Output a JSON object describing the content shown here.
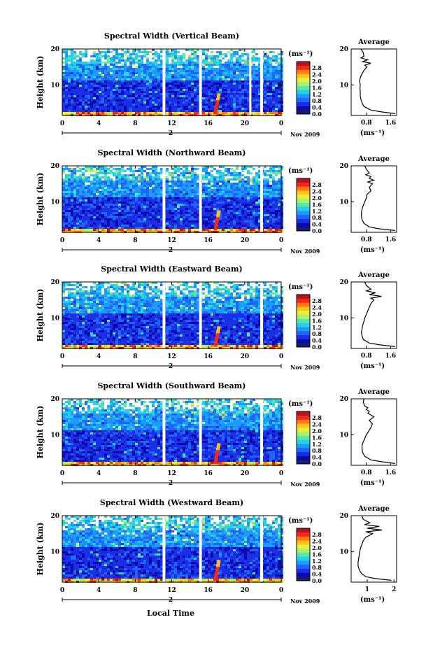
{
  "figure": {
    "xaxis_label": "Local Time",
    "date_label": "Nov 2009",
    "day_marker": "2"
  },
  "colorbar": {
    "unit_label": "(ms⁻¹)",
    "tick_labels": [
      "0.0",
      "0.4",
      "0.8",
      "1.2",
      "1.6",
      "2.0",
      "2.4",
      "2.8"
    ],
    "colors": [
      "#1a1a6e",
      "#0a0ab0",
      "#1a2fe6",
      "#1f66ff",
      "#1e9bff",
      "#25d1e6",
      "#5ce6a8",
      "#a8f070",
      "#e6f03a",
      "#ffc21a",
      "#ff7a14",
      "#f5281e",
      "#b4141e"
    ]
  },
  "chart_data": [
    {
      "type": "heatmap",
      "title": "Spectral Width (Vertical Beam)",
      "ylabel": "Height (km)",
      "x_ticks": [
        "0",
        "4",
        "8",
        "12",
        "16",
        "20",
        "0"
      ],
      "y_ticks": [
        "20",
        "10"
      ],
      "xlim": [
        0,
        24
      ],
      "ylim": [
        1.5,
        20
      ],
      "data_gaps_hours": [
        [
          11.0,
          11.3
        ],
        [
          15.0,
          15.3
        ],
        [
          20.5,
          20.7
        ],
        [
          21.7,
          22.0
        ]
      ],
      "average": {
        "title": "Average",
        "xlabel": "(ms⁻¹)",
        "x_ticks": [
          "0.8",
          "1.6"
        ],
        "y_ticks": [
          "20",
          "10"
        ],
        "xlim": [
          0.3,
          1.8
        ],
        "height_km": [
          2.0,
          2.5,
          3,
          4,
          5,
          6,
          7,
          8,
          9,
          10,
          11,
          12,
          13,
          14,
          15,
          15.5,
          16,
          16.5,
          17,
          17.5,
          18,
          19,
          20
        ],
        "values": [
          1.75,
          1.3,
          0.95,
          0.72,
          0.66,
          0.62,
          0.6,
          0.6,
          0.59,
          0.6,
          0.58,
          0.6,
          0.65,
          0.72,
          0.82,
          0.75,
          0.95,
          0.68,
          0.85,
          0.62,
          0.72,
          0.7,
          0.62
        ]
      }
    },
    {
      "type": "heatmap",
      "title": "Spectral Width (Northward Beam)",
      "ylabel": "Height (km)",
      "x_ticks": [
        "0",
        "4",
        "8",
        "12",
        "16",
        "20",
        "0"
      ],
      "y_ticks": [
        "20",
        "10"
      ],
      "xlim": [
        0,
        24
      ],
      "ylim": [
        1.5,
        20
      ],
      "data_gaps_hours": [
        [
          11.0,
          11.3
        ],
        [
          15.0,
          15.3
        ],
        [
          21.7,
          22.0
        ]
      ],
      "average": {
        "title": "Average",
        "xlabel": "(ms⁻¹)",
        "x_ticks": [
          "0.8",
          "1.6"
        ],
        "y_ticks": [
          "20",
          "10"
        ],
        "xlim": [
          0.3,
          1.8
        ],
        "height_km": [
          2.0,
          2.5,
          3,
          4,
          5,
          6,
          7,
          8,
          9,
          10,
          11,
          12,
          13,
          14,
          15,
          15.5,
          16,
          16.5,
          17,
          17.5,
          18,
          19,
          20
        ],
        "values": [
          1.75,
          1.2,
          0.9,
          0.72,
          0.66,
          0.64,
          0.64,
          0.66,
          0.7,
          0.75,
          0.8,
          0.82,
          0.95,
          0.9,
          1.0,
          0.85,
          1.05,
          0.9,
          0.95,
          0.78,
          0.9,
          0.8,
          0.75
        ]
      }
    },
    {
      "type": "heatmap",
      "title": "Spectral Width (Eastward Beam)",
      "ylabel": "Height (km)",
      "x_ticks": [
        "0",
        "4",
        "8",
        "12",
        "16",
        "20",
        "0"
      ],
      "y_ticks": [
        "20",
        "10"
      ],
      "xlim": [
        0,
        24
      ],
      "ylim": [
        1.5,
        20
      ],
      "data_gaps_hours": [
        [
          11.0,
          11.3
        ],
        [
          15.0,
          15.3
        ],
        [
          21.7,
          22.0
        ]
      ],
      "average": {
        "title": "Average",
        "xlabel": "(ms⁻¹)",
        "x_ticks": [
          "0.8",
          "1.6"
        ],
        "y_ticks": [
          "20",
          "10"
        ],
        "xlim": [
          0.3,
          1.8
        ],
        "height_km": [
          2.0,
          2.5,
          3,
          4,
          5,
          6,
          7,
          8,
          9,
          10,
          11,
          12,
          13,
          14,
          15,
          15.5,
          16,
          16.5,
          17,
          17.5,
          18,
          19,
          20
        ],
        "values": [
          1.75,
          1.25,
          0.9,
          0.7,
          0.66,
          0.64,
          0.66,
          0.68,
          0.72,
          0.75,
          0.8,
          0.85,
          0.9,
          0.95,
          1.05,
          0.95,
          1.3,
          0.9,
          1.1,
          0.8,
          0.95,
          0.8,
          0.75
        ]
      }
    },
    {
      "type": "heatmap",
      "title": "Spectral Width (Southward Beam)",
      "ylabel": "Height (km)",
      "x_ticks": [
        "0",
        "4",
        "8",
        "12",
        "16",
        "20",
        "0"
      ],
      "y_ticks": [
        "20",
        "10"
      ],
      "xlim": [
        0,
        24
      ],
      "ylim": [
        1.5,
        20
      ],
      "data_gaps_hours": [
        [
          11.0,
          11.3
        ],
        [
          15.0,
          15.3
        ],
        [
          21.7,
          22.0
        ]
      ],
      "average": {
        "title": "Average",
        "xlabel": "(ms⁻¹)",
        "x_ticks": [
          "0.8",
          "1.6"
        ],
        "y_ticks": [
          "20",
          "10"
        ],
        "xlim": [
          0.3,
          1.8
        ],
        "height_km": [
          2.0,
          2.5,
          3,
          4,
          5,
          6,
          7,
          8,
          9,
          10,
          11,
          12,
          13,
          14,
          15,
          15.5,
          16,
          16.5,
          17,
          17.5,
          18,
          19,
          20
        ],
        "values": [
          1.75,
          1.3,
          0.95,
          0.75,
          0.68,
          0.66,
          0.66,
          0.7,
          0.75,
          0.8,
          0.88,
          0.95,
          1.0,
          0.9,
          1.05,
          0.95,
          0.85,
          0.9,
          0.8,
          0.85,
          0.75,
          0.7,
          0.72
        ]
      }
    },
    {
      "type": "heatmap",
      "title": "Spectral Width (Westward Beam)",
      "ylabel": "Height (km)",
      "x_ticks": [
        "0",
        "4",
        "8",
        "12",
        "16",
        "20",
        "0"
      ],
      "y_ticks": [
        "20",
        "10"
      ],
      "xlim": [
        0,
        24
      ],
      "ylim": [
        1.5,
        20
      ],
      "data_gaps_hours": [
        [
          11.0,
          11.3
        ],
        [
          15.0,
          15.3
        ],
        [
          21.7,
          22.0
        ]
      ],
      "average": {
        "title": "Average",
        "xlabel": "(ms⁻¹)",
        "x_ticks": [
          "1",
          "2"
        ],
        "y_ticks": [
          "20",
          "10"
        ],
        "xlim": [
          0.4,
          2.1
        ],
        "height_km": [
          2.0,
          2.5,
          3,
          4,
          5,
          6,
          7,
          8,
          9,
          10,
          11,
          12,
          13,
          14,
          15,
          15.5,
          16,
          16.5,
          17,
          17.5,
          18,
          19,
          20
        ],
        "values": [
          1.9,
          1.3,
          0.95,
          0.78,
          0.7,
          0.66,
          0.66,
          0.68,
          0.7,
          0.72,
          0.75,
          0.8,
          0.85,
          0.95,
          1.2,
          0.95,
          1.55,
          1.0,
          1.45,
          0.9,
          1.1,
          0.85,
          0.8
        ]
      }
    }
  ]
}
